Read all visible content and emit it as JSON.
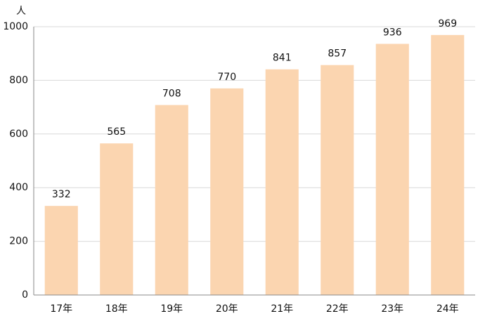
{
  "chart_data": {
    "type": "bar",
    "y_label": "人",
    "categories": [
      "17年",
      "18年",
      "19年",
      "20年",
      "21年",
      "22年",
      "23年",
      "24年"
    ],
    "values": [
      332,
      565,
      708,
      770,
      841,
      857,
      936,
      969
    ],
    "color": "#fbd5b0",
    "ylim": [
      0,
      1000
    ],
    "yticks": [
      0,
      200,
      400,
      600,
      800,
      1000
    ],
    "grid": true
  }
}
